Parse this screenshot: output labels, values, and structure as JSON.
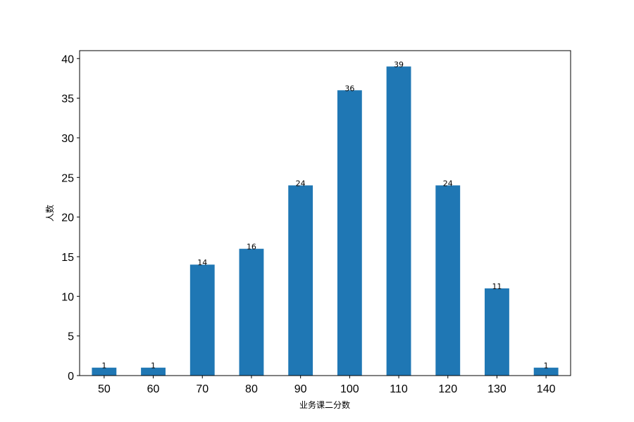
{
  "chart_data": {
    "type": "bar",
    "title": "",
    "xlabel": "业务课二分数",
    "ylabel": "人数",
    "categories": [
      "50",
      "60",
      "70",
      "80",
      "90",
      "100",
      "110",
      "120",
      "130",
      "140"
    ],
    "values": [
      1,
      1,
      14,
      16,
      24,
      36,
      39,
      24,
      11,
      1
    ],
    "data_labels": [
      "1",
      "1",
      "14",
      "16",
      "24",
      "36",
      "39",
      "24",
      "11",
      "1"
    ],
    "yticks": [
      "0",
      "5",
      "10",
      "15",
      "20",
      "25",
      "30",
      "35",
      "40"
    ],
    "ylim": [
      0,
      41
    ],
    "grid": false,
    "legend": "none",
    "bar_color": "#1f77b4"
  }
}
